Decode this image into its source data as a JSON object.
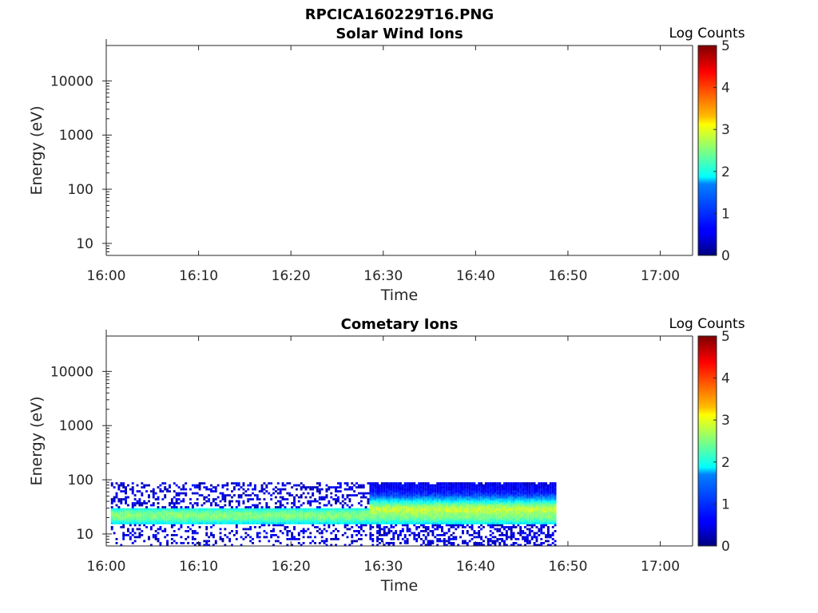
{
  "figure_title": "RPCICA160229T16.PNG",
  "chart_data": [
    {
      "type": "heatmap",
      "title": "Solar Wind Ions",
      "xlabel": "Time",
      "ylabel": "Energy (eV)",
      "x_ticks": [
        "16:00",
        "16:10",
        "16:20",
        "16:30",
        "16:40",
        "16:50",
        "17:00"
      ],
      "x_range_minutes": [
        0,
        63.5
      ],
      "y_scale": "log",
      "y_ticks": [
        "10",
        "100",
        "1000",
        "10000"
      ],
      "y_range": [
        6,
        45000
      ],
      "colorbar": {
        "label": "Log Counts",
        "ticks": [
          "0",
          "1",
          "2",
          "3",
          "4",
          "5"
        ],
        "range": [
          0,
          5
        ],
        "colormap": "jet"
      },
      "bands": []
    },
    {
      "type": "heatmap",
      "title": "Cometary Ions",
      "xlabel": "Time",
      "ylabel": "Energy (eV)",
      "x_ticks": [
        "16:00",
        "16:10",
        "16:20",
        "16:30",
        "16:40",
        "16:50",
        "17:00"
      ],
      "x_range_minutes": [
        0,
        63.5
      ],
      "y_scale": "log",
      "y_ticks": [
        "10",
        "100",
        "1000",
        "10000"
      ],
      "y_range": [
        6,
        45000
      ],
      "colorbar": {
        "label": "Log Counts",
        "ticks": [
          "0",
          "1",
          "2",
          "3",
          "4",
          "5"
        ],
        "range": [
          0,
          5
        ],
        "colormap": "jet"
      },
      "bands": [
        {
          "t_start_min": 0.5,
          "t_end_min": 48.7,
          "e_min": 15,
          "e_max": 30,
          "peak_e": 22,
          "peak_log_counts": 2.0
        },
        {
          "t_start_min": 28.5,
          "t_end_min": 48.7,
          "e_min": 15,
          "e_max": 80,
          "peak_e": 28,
          "peak_log_counts": 2.3
        }
      ]
    }
  ]
}
